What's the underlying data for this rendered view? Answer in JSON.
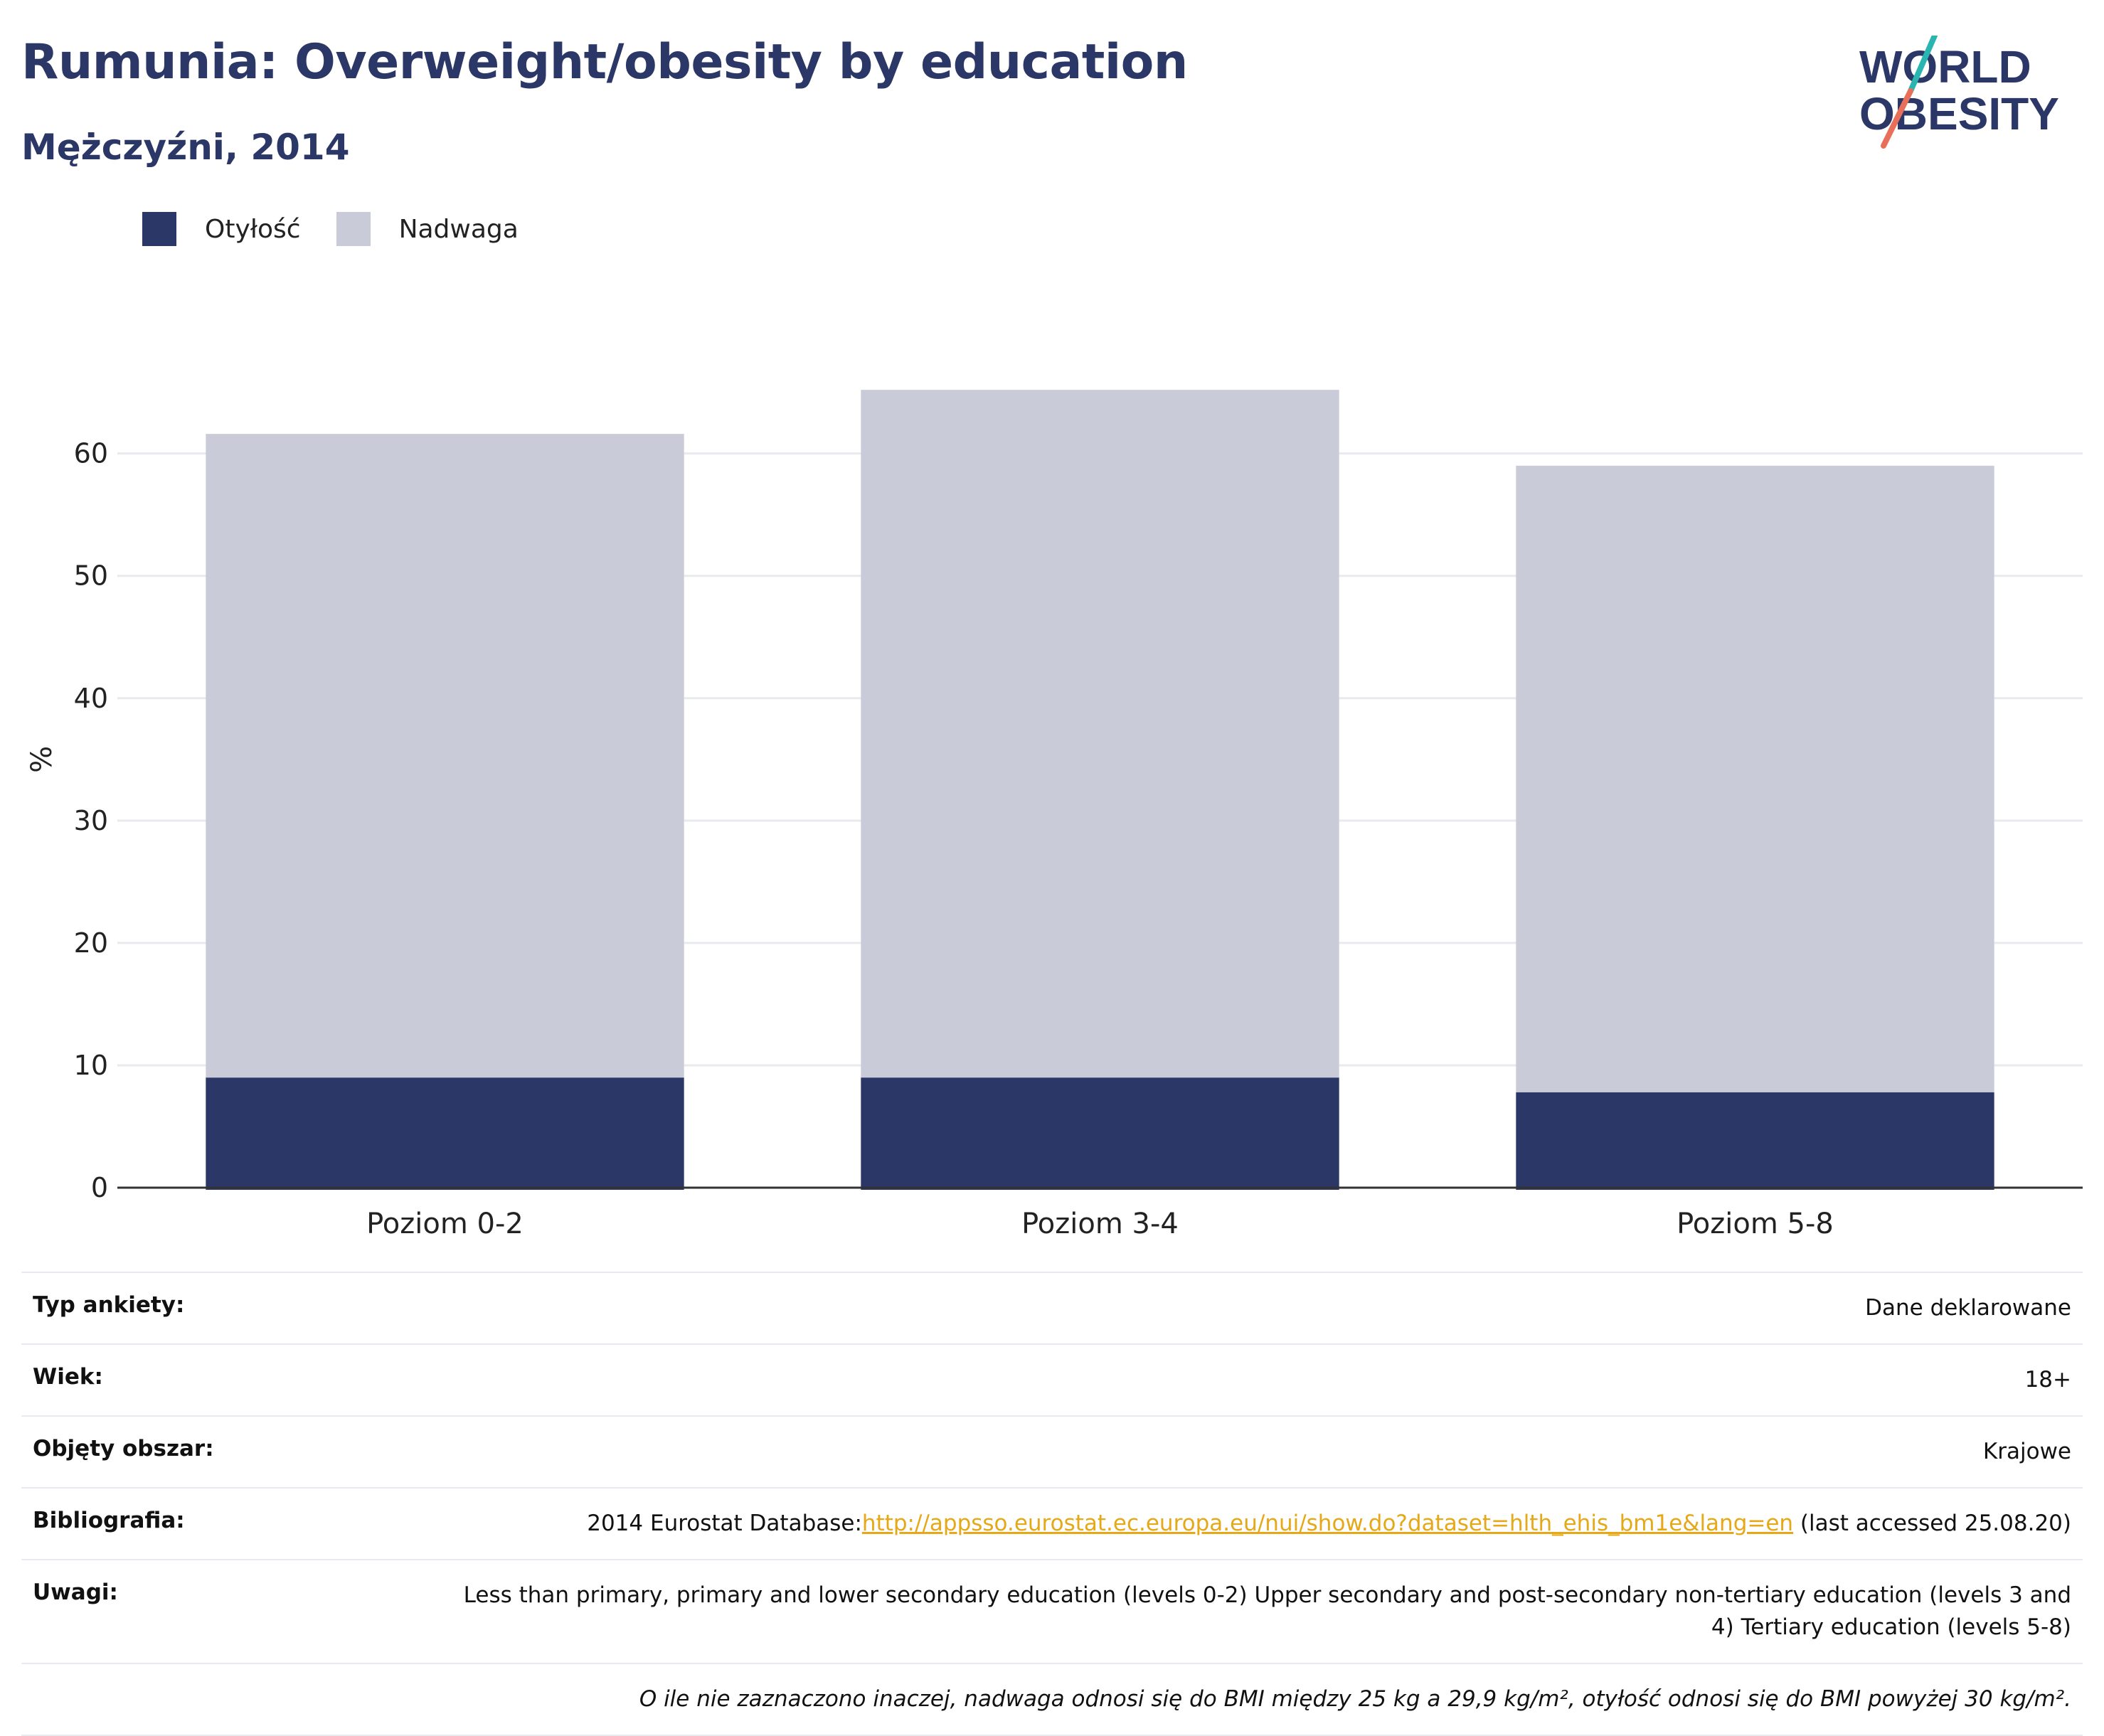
{
  "header": {
    "title": "Rumunia: Overweight/obesity by education",
    "subtitle": "Mężczyźni, 2014"
  },
  "logo": {
    "line1": "WORLD",
    "line2": "OBESITY",
    "colors": {
      "navy": "#2b3766",
      "teal": "#2bb5b0",
      "coral": "#e8705a"
    }
  },
  "legend": [
    {
      "label": "Otyłość",
      "color": "#2b3766"
    },
    {
      "label": "Nadwaga",
      "color": "#c9ccd8"
    }
  ],
  "chart_data": {
    "type": "bar",
    "stacked": true,
    "categories": [
      "Poziom 0-2",
      "Poziom 3-4",
      "Poziom 5-8"
    ],
    "series": [
      {
        "name": "Otyłość",
        "values": [
          9.0,
          9.0,
          7.8
        ],
        "color": "#2b3766"
      },
      {
        "name": "Nadwaga",
        "values": [
          52.6,
          56.2,
          51.2
        ],
        "color": "#c9ccd8"
      }
    ],
    "ylabel": "%",
    "xlabel": "",
    "ylim": [
      0,
      68
    ],
    "yticks": [
      0,
      10,
      20,
      30,
      40,
      50,
      60
    ],
    "grid": true
  },
  "info": {
    "survey_type": {
      "label": "Typ ankiety:",
      "value": "Dane deklarowane"
    },
    "age": {
      "label": "Wiek:",
      "value": "18+"
    },
    "area": {
      "label": "Objęty obszar:",
      "value": "Krajowe"
    },
    "bibliography": {
      "label": "Bibliografia:",
      "prefix": "2014 Eurostat Database:",
      "link": "http://appsso.eurostat.ec.europa.eu/nui/show.do?dataset=hlth_ehis_bm1e&lang=en",
      "suffix": " (last accessed 25.08.20)"
    },
    "notes": {
      "label": "Uwagi:",
      "value": "Less than primary, primary and lower secondary education (levels 0-2) Upper secondary and post-secondary non-tertiary education (levels 3 and 4) Tertiary education (levels 5-8)"
    },
    "footnote": "O ile nie zaznaczono inaczej, nadwaga odnosi się do BMI między 25 kg a 29,9 kg/m², otyłość odnosi się do BMI powyżej 30 kg/m²."
  }
}
